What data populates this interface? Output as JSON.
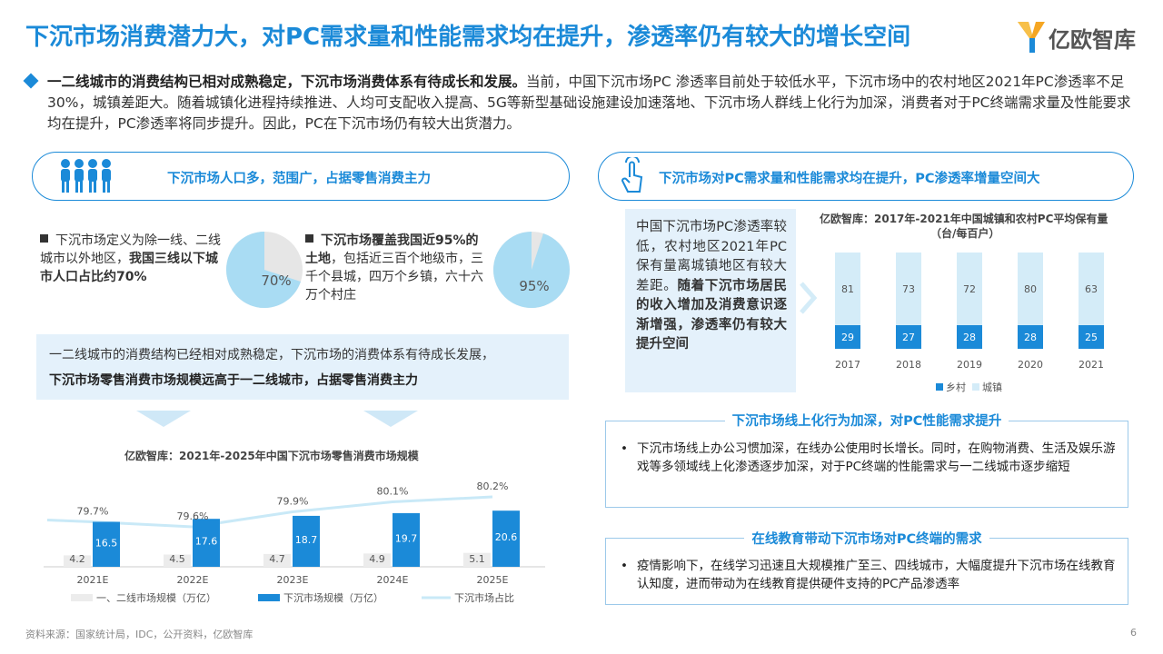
{
  "header": {
    "title": "下沉市场消费潜力大，对PC需求量和性能需求均在提升，渗透率仍有较大的增长空间",
    "logo_text": "亿欧智库"
  },
  "intro": {
    "bold": "一二线城市的消费结构已相对成熟稳定，下沉市场消费体系有待成长和发展。",
    "rest": "当前，中国下沉市场PC 渗透率目前处于较低水平，下沉市场中的农村地区2021年PC渗透率不足30%，城镇差距大。随着城镇化进程持续推进、人均可支配收入提高、5G等新型基础设施建设加速落地、下沉市场人群线上化行为加深，消费者对于PC终端需求量及性能要求均在提升，PC渗透率将同步提升。因此，PC在下沉市场仍有较大出货潜力。"
  },
  "left_panel": {
    "pill_label": "下沉市场人口多，范围广，占据零售消费主力",
    "block1": {
      "normal": "下沉市场定义为除一线、二线城市以外地区，",
      "bold": "我国三线以下城市人口占比约70%",
      "pie_value": 70,
      "pie_label": "70%"
    },
    "block2": {
      "bold": "下沉市场覆盖我国近95%的土地",
      "normal": "，包括近三百个地级市，三千个县城，四万个乡镇，六十六万个村庄",
      "pie_value": 95,
      "pie_label": "95%"
    },
    "shade_line1": "一二线城市的消费结构已经相对成熟稳定，下沉市场的消费体系有待成长发展，",
    "shade_line2": "下沉市场零售消费市场规模远高于一二线城市，占据零售消费主力"
  },
  "retail_chart": {
    "chart_data": {
      "type": "bar",
      "title": "亿欧智库：2021年-2025年中国下沉市场零售消费市场规模",
      "categories": [
        "2021E",
        "2022E",
        "2023E",
        "2024E",
        "2025E"
      ],
      "series": [
        {
          "name": "一、二线市场规模（万亿）",
          "values": [
            4.2,
            4.5,
            4.7,
            4.9,
            5.1
          ],
          "labels": [
            "4.2",
            "4.5",
            "4.7",
            "4.9",
            "5.1"
          ]
        },
        {
          "name": "下沉市场规模（万亿）",
          "values": [
            16.5,
            17.6,
            18.7,
            19.7,
            20.6
          ],
          "labels": [
            "16.5",
            "17.6",
            "18.7",
            "19.7",
            "20.6"
          ]
        },
        {
          "name": "下沉市场占比",
          "values": [
            79.7,
            79.6,
            79.9,
            80.1,
            80.2
          ],
          "labels": [
            "79.7%",
            "79.6%",
            "79.9%",
            "80.1%",
            "80.2%"
          ]
        }
      ],
      "legend_position": "bottom"
    }
  },
  "right_panel": {
    "pill_label": "下沉市场对PC需求量和性能需求均在提升，PC渗透率增量空间大",
    "callout_normal": "中国下沉市场PC渗透率较低，农村地区2021年PC保有量离城镇地区有较大差距。",
    "callout_bold": "随着下沉市场居民的收入增加及消费意识逐渐增强，渗透率仍有较大提升空间"
  },
  "pc_chart": {
    "chart_data": {
      "type": "bar",
      "title": "亿欧智库：2017年-2021年中国城镇和农村PC平均保有量",
      "subtitle": "（台/每百户）",
      "categories": [
        "2017",
        "2018",
        "2019",
        "2020",
        "2021"
      ],
      "series": [
        {
          "name": "乡村",
          "values": [
            29,
            27,
            28,
            28,
            25
          ]
        },
        {
          "name": "城镇",
          "values": [
            81,
            73,
            72,
            80,
            63
          ]
        }
      ],
      "stacked": true,
      "legend_position": "bottom"
    }
  },
  "online_box": {
    "head": "下沉市场线上化行为加深，对PC性能需求提升",
    "bullet": "下沉市场线上办公习惯加深，在线办公使用时长增长。同时，在购物消费、生活及娱乐游戏等多领域线上化渗透逐步加深，对于PC终端的性能需求与一二线城市逐步缩短"
  },
  "edu_box": {
    "head": "在线教育带动下沉市场对PC终端的需求",
    "bullet": "疫情影响下，在线学习迅速且大规模推广至三、四线城市，大幅度提升下沉市场在线教育认知度，进而带动为在线教育提供硬件支持的PC产品渗透率"
  },
  "footer": {
    "source": "资料来源：国家统计局，IDC，公开资料，亿欧智库",
    "page": "6"
  },
  "colors": {
    "brand_blue": "#1b8ad8",
    "light_blue": "#a9dcf3",
    "pale_blue": "#d4ecf8",
    "grey_bar": "#ececec",
    "shade": "#e4f1fb"
  },
  "icons": [
    "logo-mark-icon",
    "people-group-icon",
    "hand-touch-icon",
    "diamond-bullet-icon"
  ]
}
